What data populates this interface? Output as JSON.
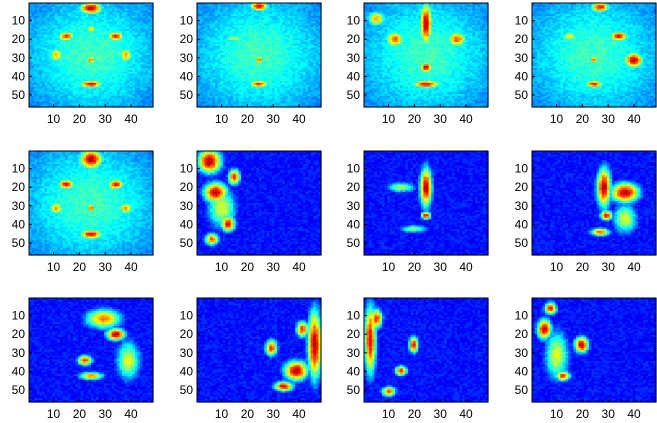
{
  "chart_data": {
    "type": "heatmap",
    "grid": {
      "rows": 3,
      "cols": 4
    },
    "colormap": "jet",
    "colors": {
      "axes_edge": "#000000",
      "low": "#00008f",
      "high": "#800000"
    },
    "x_ticks": [
      "10",
      "20",
      "30",
      "40"
    ],
    "y_ticks": [
      "10",
      "20",
      "30",
      "40",
      "50"
    ],
    "xlim": [
      0.5,
      48.5
    ],
    "ylim": [
      0.5,
      56.5
    ],
    "y_reversed": true,
    "panels": [
      {
        "style": "face",
        "hot": [
          [
            0.5,
            0.05,
            0.1,
            0.06,
            0.95
          ],
          [
            0.3,
            0.32,
            0.07,
            0.05,
            0.85
          ],
          [
            0.7,
            0.32,
            0.07,
            0.05,
            0.85
          ],
          [
            0.5,
            0.55,
            0.04,
            0.04,
            0.8
          ],
          [
            0.5,
            0.78,
            0.1,
            0.04,
            0.9
          ],
          [
            0.22,
            0.5,
            0.06,
            0.08,
            0.7
          ],
          [
            0.78,
            0.5,
            0.06,
            0.08,
            0.7
          ],
          [
            0.5,
            0.25,
            0.04,
            0.03,
            0.75
          ]
        ]
      },
      {
        "style": "face",
        "hot": [
          [
            0.5,
            0.03,
            0.08,
            0.05,
            0.9
          ],
          [
            0.5,
            0.55,
            0.04,
            0.04,
            0.8
          ],
          [
            0.5,
            0.78,
            0.08,
            0.04,
            0.85
          ],
          [
            0.3,
            0.34,
            0.1,
            0.04,
            0.55
          ]
        ]
      },
      {
        "style": "face",
        "hot": [
          [
            0.5,
            0.2,
            0.05,
            0.22,
            0.95
          ],
          [
            0.5,
            0.62,
            0.05,
            0.05,
            0.95
          ],
          [
            0.5,
            0.78,
            0.12,
            0.04,
            0.9
          ],
          [
            0.25,
            0.35,
            0.08,
            0.08,
            0.8
          ],
          [
            0.75,
            0.35,
            0.08,
            0.08,
            0.8
          ],
          [
            0.1,
            0.15,
            0.08,
            0.08,
            0.7
          ]
        ]
      },
      {
        "style": "face",
        "hot": [
          [
            0.55,
            0.04,
            0.08,
            0.05,
            0.9
          ],
          [
            0.7,
            0.32,
            0.08,
            0.05,
            0.9
          ],
          [
            0.82,
            0.55,
            0.08,
            0.08,
            0.95
          ],
          [
            0.5,
            0.55,
            0.04,
            0.04,
            0.8
          ],
          [
            0.5,
            0.78,
            0.08,
            0.04,
            0.85
          ],
          [
            0.3,
            0.32,
            0.06,
            0.04,
            0.7
          ]
        ]
      },
      {
        "style": "face",
        "hot": [
          [
            0.5,
            0.08,
            0.1,
            0.1,
            0.95
          ],
          [
            0.3,
            0.32,
            0.07,
            0.05,
            0.9
          ],
          [
            0.7,
            0.32,
            0.07,
            0.05,
            0.9
          ],
          [
            0.5,
            0.55,
            0.04,
            0.04,
            0.8
          ],
          [
            0.5,
            0.8,
            0.1,
            0.05,
            0.9
          ],
          [
            0.22,
            0.55,
            0.06,
            0.06,
            0.75
          ],
          [
            0.78,
            0.55,
            0.06,
            0.06,
            0.75
          ]
        ]
      },
      {
        "style": "dark",
        "hot": [
          [
            0.1,
            0.1,
            0.1,
            0.12,
            0.95
          ],
          [
            0.15,
            0.4,
            0.1,
            0.1,
            0.95
          ],
          [
            0.25,
            0.7,
            0.06,
            0.08,
            0.9
          ],
          [
            0.12,
            0.85,
            0.06,
            0.06,
            0.8
          ],
          [
            0.3,
            0.25,
            0.05,
            0.08,
            0.85
          ],
          [
            0.2,
            0.55,
            0.12,
            0.2,
            0.6
          ]
        ]
      },
      {
        "style": "dark",
        "hot": [
          [
            0.5,
            0.35,
            0.05,
            0.2,
            0.95
          ],
          [
            0.5,
            0.62,
            0.04,
            0.04,
            0.9
          ],
          [
            0.3,
            0.35,
            0.12,
            0.05,
            0.55
          ],
          [
            0.4,
            0.75,
            0.12,
            0.04,
            0.5
          ]
        ]
      },
      {
        "style": "dark",
        "hot": [
          [
            0.58,
            0.35,
            0.06,
            0.2,
            0.95
          ],
          [
            0.75,
            0.4,
            0.12,
            0.1,
            0.95
          ],
          [
            0.6,
            0.62,
            0.05,
            0.05,
            0.9
          ],
          [
            0.55,
            0.78,
            0.08,
            0.04,
            0.8
          ],
          [
            0.75,
            0.65,
            0.1,
            0.15,
            0.6
          ]
        ]
      },
      {
        "style": "dark",
        "hot": [
          [
            0.6,
            0.2,
            0.15,
            0.1,
            0.75
          ],
          [
            0.7,
            0.35,
            0.08,
            0.06,
            0.95
          ],
          [
            0.45,
            0.6,
            0.06,
            0.05,
            0.85
          ],
          [
            0.5,
            0.75,
            0.1,
            0.04,
            0.75
          ],
          [
            0.8,
            0.6,
            0.1,
            0.2,
            0.6
          ]
        ]
      },
      {
        "style": "dark",
        "hot": [
          [
            0.95,
            0.45,
            0.06,
            0.35,
            0.95
          ],
          [
            0.8,
            0.7,
            0.1,
            0.1,
            0.95
          ],
          [
            0.7,
            0.85,
            0.08,
            0.05,
            0.9
          ],
          [
            0.6,
            0.48,
            0.05,
            0.08,
            0.85
          ],
          [
            0.85,
            0.3,
            0.05,
            0.08,
            0.85
          ]
        ]
      },
      {
        "style": "dark",
        "hot": [
          [
            0.05,
            0.4,
            0.05,
            0.35,
            0.9
          ],
          [
            0.1,
            0.2,
            0.05,
            0.1,
            0.85
          ],
          [
            0.4,
            0.45,
            0.04,
            0.08,
            0.9
          ],
          [
            0.3,
            0.7,
            0.05,
            0.05,
            0.85
          ],
          [
            0.2,
            0.9,
            0.06,
            0.05,
            0.8
          ]
        ]
      },
      {
        "style": "dark",
        "hot": [
          [
            0.1,
            0.3,
            0.06,
            0.1,
            0.95
          ],
          [
            0.4,
            0.45,
            0.06,
            0.08,
            0.95
          ],
          [
            0.25,
            0.75,
            0.06,
            0.05,
            0.85
          ],
          [
            0.15,
            0.1,
            0.05,
            0.06,
            0.9
          ],
          [
            0.2,
            0.55,
            0.1,
            0.25,
            0.6
          ]
        ]
      }
    ]
  }
}
